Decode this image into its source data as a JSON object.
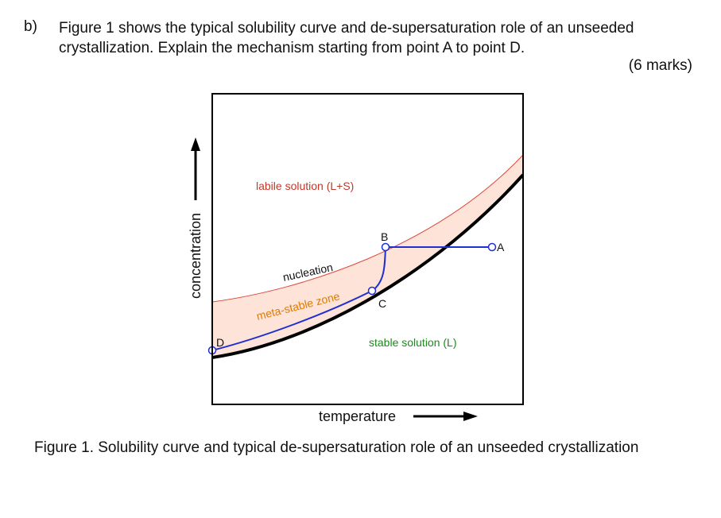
{
  "question": {
    "label": "b)",
    "line1": "Figure 1 shows the typical solubility curve and de-supersaturation role of an unseeded",
    "line2": "crystallization. Explain the mechanism starting from point A to point D.",
    "marks": "(6 marks)"
  },
  "figure": {
    "xlabel": "temperature",
    "ylabel": "concentration",
    "regions": {
      "labile": "labile solution (L+S)",
      "stable": "stable solution (L)",
      "metastable": "meta-stable zone"
    },
    "curve_labels": {
      "nucleation": "nucleation"
    },
    "points": [
      "A",
      "B",
      "C",
      "D"
    ],
    "colors": {
      "labile_text": "#c0392b",
      "stable_text": "#1a8a1a",
      "metastable_text": "#e07b00",
      "metastable_fill": "#fde3d8",
      "nucleation_curve": "#e0483a",
      "solubility_curve": "#000000",
      "path": "#1f2fd0"
    },
    "caption": "Figure 1. Solubility curve and typical de-supersaturation role of an unseeded crystallization"
  }
}
